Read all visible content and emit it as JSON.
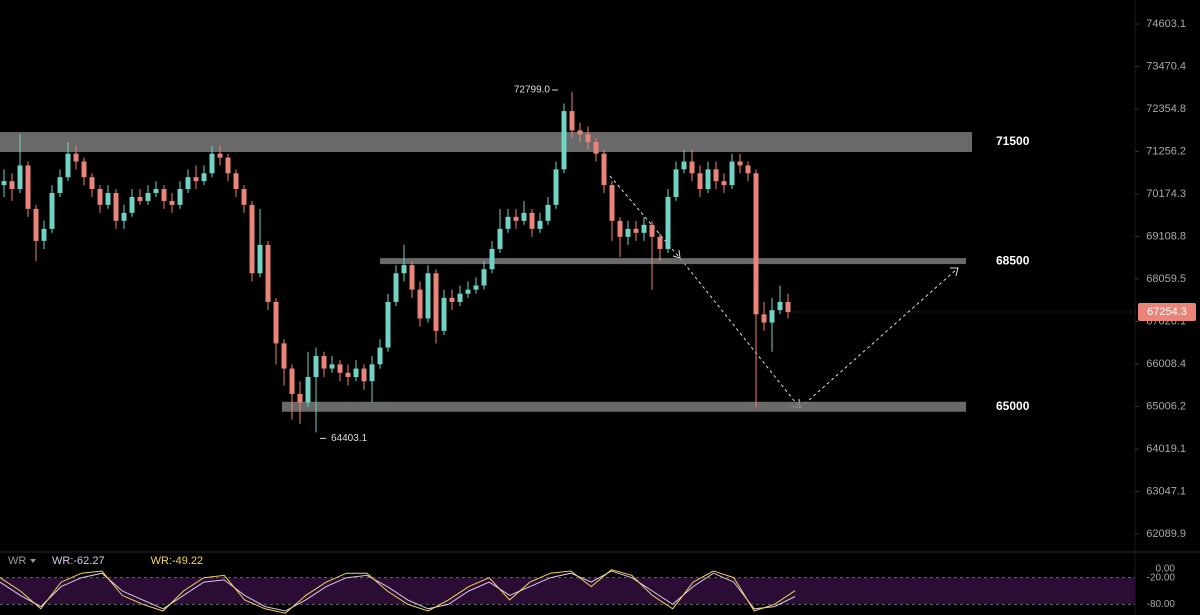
{
  "chart_data": {
    "type": "candlestick",
    "log": true,
    "ylim": [
      61733,
      75251
    ],
    "yticks": [
      74603.1,
      73470.4,
      72354.8,
      71256.2,
      70174.3,
      69108.8,
      68059.5,
      67026.1,
      66008.4,
      65006.2,
      64019.1,
      63047.1,
      62089.9
    ],
    "up_color": "#6fd3c6",
    "down_color": "#ea8479",
    "open": [
      70400,
      70500,
      70300,
      70900,
      69800,
      69000,
      69300,
      70200,
      70600,
      71200,
      71000,
      70600,
      70300,
      69900,
      70200,
      69500,
      69700,
      70100,
      70000,
      70200,
      70300,
      70000,
      69900,
      70300,
      70600,
      70500,
      70700,
      71200,
      71100,
      70700,
      70300,
      69900,
      68200,
      68900,
      67500,
      66500,
      65900,
      65300,
      65100,
      65700,
      66200,
      65900,
      66000,
      65800,
      65700,
      65900,
      65600,
      66000,
      66400,
      67500,
      68200,
      68400,
      67800,
      67100,
      68200,
      66800,
      67600,
      67500,
      67700,
      67800,
      67900,
      68300,
      68800,
      69300,
      69600,
      69500,
      69700,
      69300,
      69500,
      69900,
      70800,
      72300,
      71800,
      71700,
      71500,
      71200,
      70400,
      69500,
      69100,
      69300,
      69200,
      69400,
      69100,
      68800,
      70100,
      70800,
      71000,
      70700,
      70300,
      70800,
      70500,
      70400,
      71000,
      70900,
      70700,
      67200,
      67000,
      67300,
      67500
    ],
    "high": [
      70800,
      70700,
      71700,
      71000,
      69900,
      69500,
      70400,
      70800,
      71500,
      71400,
      71100,
      70700,
      70400,
      70400,
      70300,
      69900,
      70300,
      70300,
      70400,
      70500,
      70400,
      70200,
      70500,
      70800,
      70900,
      70900,
      71400,
      71400,
      71200,
      70800,
      70400,
      70000,
      69800,
      69000,
      67600,
      66600,
      66000,
      65600,
      66300,
      66400,
      66300,
      66200,
      66100,
      66000,
      66100,
      66000,
      66200,
      66600,
      67700,
      68400,
      68900,
      68500,
      68000,
      68400,
      68300,
      67800,
      67800,
      67900,
      68000,
      68100,
      68500,
      69000,
      69800,
      69800,
      69800,
      70000,
      69800,
      69700,
      70100,
      71000,
      72500,
      72799,
      72000,
      71900,
      71600,
      71300,
      70500,
      69600,
      69500,
      69500,
      69600,
      69500,
      69200,
      70300,
      71000,
      71300,
      71300,
      70900,
      71000,
      71000,
      70700,
      71200,
      71200,
      71000,
      70800,
      67500,
      67600,
      67900,
      67700
    ],
    "low": [
      70100,
      70000,
      70200,
      69600,
      68500,
      68800,
      69200,
      70100,
      70500,
      70800,
      70400,
      70100,
      69700,
      69800,
      69300,
      69300,
      69600,
      69900,
      69900,
      70100,
      69800,
      69700,
      69800,
      70200,
      70300,
      70400,
      70600,
      70900,
      70500,
      70100,
      69700,
      68000,
      68100,
      67300,
      66000,
      65500,
      64700,
      64600,
      65000,
      64403.1,
      65700,
      65800,
      65600,
      65500,
      65600,
      65400,
      65100,
      65900,
      66300,
      67400,
      68000,
      67600,
      66900,
      67000,
      66500,
      66700,
      67300,
      67400,
      67600,
      67700,
      67800,
      68200,
      68700,
      69200,
      69300,
      69400,
      69100,
      69200,
      69400,
      69800,
      70700,
      71600,
      71500,
      71300,
      71000,
      70200,
      69000,
      68600,
      68900,
      69000,
      69000,
      67800,
      68500,
      68700,
      70000,
      70700,
      70500,
      70100,
      70200,
      70300,
      70200,
      70300,
      70700,
      70500,
      65000,
      66800,
      66300,
      67200,
      67100
    ],
    "close": [
      70500,
      70300,
      70900,
      69800,
      69000,
      69300,
      70200,
      70600,
      71200,
      71000,
      70600,
      70300,
      69900,
      70200,
      69500,
      69700,
      70100,
      70000,
      70200,
      70300,
      70000,
      69900,
      70300,
      70600,
      70500,
      70700,
      71200,
      71100,
      70700,
      70300,
      69900,
      68200,
      68900,
      67500,
      66500,
      65900,
      65300,
      65100,
      65700,
      66200,
      65900,
      66000,
      65800,
      65700,
      65900,
      65600,
      66000,
      66400,
      67500,
      68200,
      68400,
      67800,
      67100,
      68200,
      66800,
      67600,
      67500,
      67700,
      67800,
      67900,
      68300,
      68800,
      69300,
      69600,
      69500,
      69700,
      69300,
      69500,
      69900,
      70800,
      72300,
      71800,
      71700,
      71500,
      71200,
      70400,
      69500,
      69100,
      69300,
      69200,
      69400,
      69100,
      68800,
      70100,
      70800,
      71000,
      70700,
      70300,
      70800,
      70500,
      70400,
      71000,
      70900,
      70700,
      67200,
      67000,
      67300,
      67500,
      67254.3
    ],
    "levels": [
      71500,
      68500,
      65000
    ],
    "last_price": 67254.3,
    "annotations": [
      {
        "value": 72799,
        "label": "72799.0"
      },
      {
        "value": 64403.1,
        "label": "64403.1"
      }
    ],
    "indicator": {
      "type": "line",
      "title": "WR",
      "ylim": [
        -104,
        31
      ],
      "yticks": [
        {
          "value": 0,
          "label": "0.00"
        },
        {
          "value": -20,
          "label": "-20.00"
        },
        {
          "value": -80,
          "label": "-80.00"
        }
      ],
      "series": [
        {
          "name": "WR:-62.27",
          "color": "#d8c8e8",
          "values": [
            -30,
            -60,
            -85,
            -40,
            -20,
            -10,
            -50,
            -70,
            -90,
            -60,
            -30,
            -25,
            -60,
            -85,
            -95,
            -70,
            -40,
            -20,
            -15,
            -40,
            -70,
            -90,
            -80,
            -50,
            -30,
            -60,
            -40,
            -20,
            -10,
            -30,
            -5,
            -20,
            -50,
            -80,
            -40,
            -10,
            -30,
            -90,
            -85,
            -62.27
          ]
        },
        {
          "name": "WR:-49.22",
          "color": "#f2d55a",
          "values": [
            -20,
            -50,
            -90,
            -30,
            -10,
            -5,
            -60,
            -80,
            -95,
            -50,
            -20,
            -15,
            -70,
            -90,
            -100,
            -60,
            -30,
            -10,
            -10,
            -50,
            -80,
            -95,
            -70,
            -40,
            -20,
            -70,
            -30,
            -10,
            -5,
            -40,
            -2,
            -15,
            -60,
            -90,
            -30,
            -5,
            -20,
            -95,
            -80,
            -49.22
          ]
        }
      ]
    }
  }
}
